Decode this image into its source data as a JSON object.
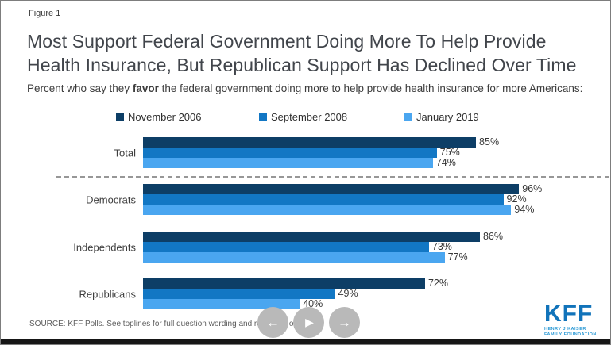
{
  "figure_label": "Figure 1",
  "title_line1": "Most Support Federal Government Doing More To Help Provide",
  "title_line2": "Health Insurance, But Republican Support Has Declined Over Time",
  "subtitle_prefix": "Percent who say they ",
  "subtitle_bold": "favor",
  "subtitle_suffix": " the federal government doing more to help provide health insurance for more Americans:",
  "chart_data": {
    "type": "bar",
    "orientation": "horizontal",
    "title": "Most Support Federal Government Doing More To Help Provide Health Insurance, But Republican Support Has Declined Over Time",
    "categories": [
      "Total",
      "Democrats",
      "Independents",
      "Republicans"
    ],
    "series": [
      {
        "name": "November 2006",
        "color": "#0d3e66",
        "values": [
          85,
          96,
          86,
          72
        ]
      },
      {
        "name": "September 2008",
        "color": "#1277c4",
        "values": [
          75,
          92,
          73,
          49
        ]
      },
      {
        "name": "January 2019",
        "color": "#4aa6f0",
        "values": [
          74,
          94,
          77,
          40
        ]
      }
    ],
    "value_suffix": "%",
    "xlim": [
      0,
      100
    ],
    "legend_position": "top",
    "grid": false
  },
  "source_text": "SOURCE: KFF Polls. See toplines for full question wording and response options.",
  "nav": {
    "prev_icon": "←",
    "play_icon": "▶",
    "next_icon": "→"
  },
  "logo": {
    "kff": "KFF",
    "line1": "HENRY J KAISER",
    "line2": "FAMILY FOUNDATION"
  },
  "colors": {
    "nov_2006": "#0d3e66",
    "sep_2008": "#1277c4",
    "jan_2019": "#4aa6f0",
    "kff_blue": "#1173ba",
    "kff_light_blue": "#2e9bd6",
    "nav_button_gray": "#b9b9b9"
  }
}
